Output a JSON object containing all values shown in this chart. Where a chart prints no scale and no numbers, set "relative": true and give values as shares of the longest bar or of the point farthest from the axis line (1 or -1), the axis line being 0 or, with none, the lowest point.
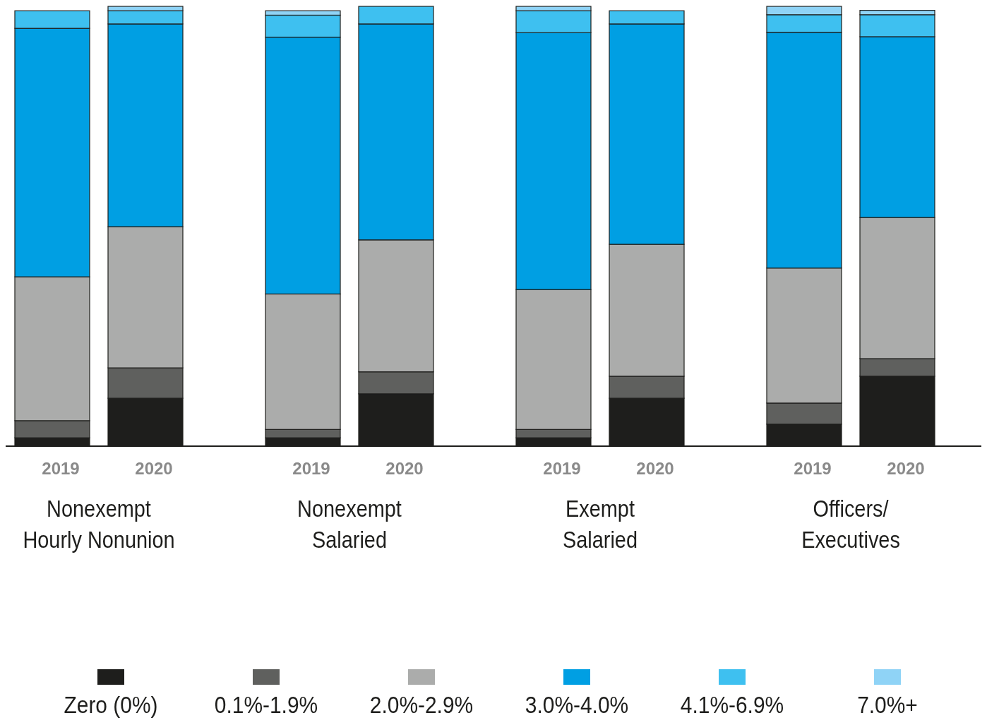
{
  "chart_data": {
    "type": "bar",
    "stacked": true,
    "relative": true,
    "legend": "bottom",
    "categories": [
      "2019",
      "2020",
      "2019",
      "2020",
      "2019",
      "2020",
      "2019",
      "2020"
    ],
    "annotations": [
      "Nonexempt\nHourly Nonunion",
      "Nonexempt\nSalaried",
      "Exempt\nSalaried",
      "Officers/\nExecutives"
    ],
    "series": [
      {
        "name": "Zero (0%)",
        "color": "#1e1e1c",
        "values": [
          0.019,
          0.109,
          0.019,
          0.119,
          0.019,
          0.109,
          0.05,
          0.159
        ]
      },
      {
        "name": "0.1%-1.9%",
        "color": "#5f605e",
        "values": [
          0.039,
          0.069,
          0.019,
          0.05,
          0.019,
          0.05,
          0.048,
          0.04
        ]
      },
      {
        "name": "2.0%-2.9%",
        "color": "#abacab",
        "values": [
          0.327,
          0.321,
          0.308,
          0.3,
          0.318,
          0.3,
          0.307,
          0.321
        ]
      },
      {
        "name": "3.0%-4.0%",
        "color": "#009fe3",
        "values": [
          0.565,
          0.461,
          0.584,
          0.491,
          0.584,
          0.501,
          0.536,
          0.411
        ]
      },
      {
        "name": "4.1%-6.9%",
        "color": "#3ec0f0",
        "values": [
          0.04,
          0.03,
          0.05,
          0.04,
          0.05,
          0.03,
          0.04,
          0.05
        ]
      },
      {
        "name": "7.0%+",
        "color": "#8fd3f6",
        "values": [
          0,
          0.01,
          0.01,
          0,
          0.01,
          0,
          0.019,
          0.01
        ]
      }
    ]
  }
}
